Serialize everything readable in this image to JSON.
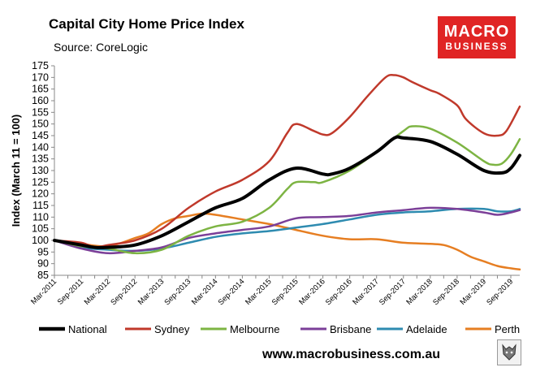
{
  "header": {
    "title": "Capital City Home Price Index",
    "source": "Source: CoreLogic"
  },
  "logo": {
    "line1": "MACRO",
    "line2": "BUSINESS",
    "color": "#e02424"
  },
  "footer": {
    "url": "www.macrobusiness.com.au"
  },
  "chart_data": {
    "type": "line",
    "title": "Capital City Home Price Index",
    "xlabel": "",
    "ylabel": "Index (March 11 = 100)",
    "ylim": [
      85,
      175
    ],
    "yticks": [
      85,
      90,
      95,
      100,
      105,
      110,
      115,
      120,
      125,
      130,
      135,
      140,
      145,
      150,
      155,
      160,
      165,
      170,
      175
    ],
    "xlim": [
      0,
      104
    ],
    "grid": false,
    "legend_position": "bottom",
    "x_tick_labels": [
      "Mar-2011",
      "Sep-2011",
      "Mar-2012",
      "Sep-2012",
      "Mar-2013",
      "Sep-2013",
      "Mar-2014",
      "Sep-2014",
      "Mar-2015",
      "Sep-2015",
      "Mar-2016",
      "Sep-2016",
      "Mar-2017",
      "Sep-2017",
      "Mar-2018",
      "Sep-2018",
      "Mar-2019",
      "Sep-2019"
    ],
    "x_tick_months": [
      0,
      6,
      12,
      18,
      24,
      30,
      36,
      42,
      48,
      54,
      60,
      66,
      72,
      78,
      84,
      90,
      96,
      102
    ],
    "series": [
      {
        "name": "National",
        "color": "#000000",
        "width": 4,
        "x": [
          0,
          6,
          9,
          12,
          18,
          24,
          30,
          36,
          42,
          48,
          54,
          60,
          62,
          66,
          72,
          76,
          78,
          84,
          90,
          96,
          100,
          102,
          104
        ],
        "y": [
          100,
          98,
          97,
          97,
          98,
          102,
          108,
          114,
          118,
          126,
          131,
          128.5,
          128.5,
          131,
          138,
          144,
          144,
          142.5,
          137,
          130,
          129,
          131,
          136.5
        ]
      },
      {
        "name": "Sydney",
        "color": "#c0392b",
        "width": 2.5,
        "x": [
          0,
          6,
          9,
          12,
          18,
          24,
          30,
          36,
          42,
          48,
          52,
          54,
          58,
          60,
          62,
          66,
          70,
          74,
          76,
          78,
          80,
          84,
          86,
          90,
          92,
          96,
          99,
          101,
          104
        ],
        "y": [
          100,
          99,
          97,
          98,
          100,
          105,
          114,
          121,
          126,
          134,
          146,
          150,
          147,
          145.5,
          146,
          153,
          162,
          170,
          171,
          170,
          168,
          164.5,
          163,
          158,
          152,
          146,
          145,
          147,
          157.5
        ]
      },
      {
        "name": "Melbourne",
        "color": "#7db443",
        "width": 2.5,
        "x": [
          0,
          6,
          12,
          18,
          24,
          30,
          36,
          42,
          48,
          52,
          54,
          58,
          60,
          66,
          72,
          78,
          80,
          84,
          90,
          96,
          98,
          100,
          102,
          104
        ],
        "y": [
          100,
          97.5,
          96.5,
          94.5,
          96,
          102,
          106,
          108,
          114,
          122,
          125,
          125,
          125,
          130,
          138,
          147,
          149,
          148,
          142,
          134,
          132.5,
          133,
          137,
          143.5
        ]
      },
      {
        "name": "Brisbane",
        "color": "#7b3f98",
        "width": 2.5,
        "x": [
          0,
          6,
          12,
          18,
          24,
          30,
          36,
          42,
          48,
          54,
          60,
          66,
          72,
          78,
          84,
          90,
          96,
          99,
          102,
          104
        ],
        "y": [
          100,
          96.5,
          94.5,
          95.5,
          97,
          101,
          103,
          104.5,
          106,
          109.5,
          110,
          110.5,
          112,
          113,
          114,
          113.5,
          112,
          111,
          112,
          113
        ]
      },
      {
        "name": "Adelaide",
        "color": "#2e8bb0",
        "width": 2.5,
        "x": [
          0,
          6,
          12,
          18,
          24,
          30,
          36,
          42,
          48,
          54,
          60,
          66,
          72,
          78,
          84,
          90,
          96,
          99,
          102,
          104
        ],
        "y": [
          100,
          97,
          96,
          95.5,
          96.5,
          99,
          101.5,
          103,
          104,
          105.5,
          107,
          109,
          111,
          112,
          112.5,
          113.5,
          113.5,
          112.5,
          112.5,
          113.5
        ]
      },
      {
        "name": "Perth",
        "color": "#e67e22",
        "width": 2.5,
        "x": [
          0,
          6,
          12,
          18,
          21,
          24,
          27,
          30,
          33,
          36,
          42,
          48,
          54,
          60,
          66,
          72,
          78,
          84,
          87,
          90,
          93,
          96,
          99,
          102,
          104
        ],
        "y": [
          100,
          98.5,
          97.5,
          101,
          103,
          107,
          109.5,
          110.5,
          111.5,
          111,
          109,
          107,
          104.5,
          102,
          100.5,
          100.5,
          99,
          98.5,
          98,
          96,
          93,
          91,
          89,
          88,
          87.5
        ]
      }
    ]
  }
}
